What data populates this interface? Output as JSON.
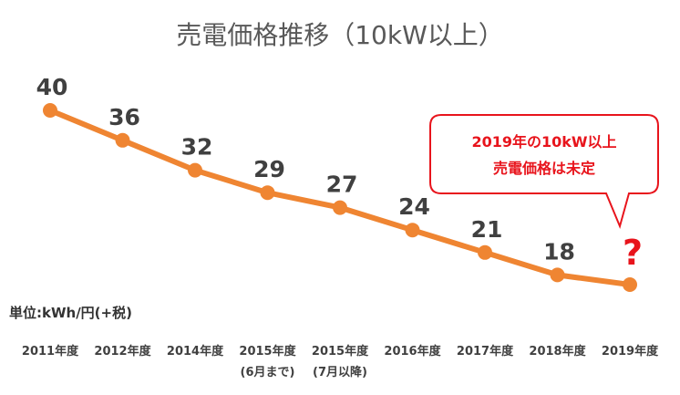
{
  "colors": {
    "line": "#ef8532",
    "accent": "#e8141c",
    "text": "#404040"
  },
  "chart_data": {
    "type": "line",
    "title": "売電価格推移（10kW以上）",
    "unit_label": "単位:kWh/円(+税)",
    "categories": [
      [
        "2011年度"
      ],
      [
        "2012年度"
      ],
      [
        "2014年度"
      ],
      [
        "2015年度",
        "(6月まで)"
      ],
      [
        "2015年度",
        "(7月以降)"
      ],
      [
        "2016年度"
      ],
      [
        "2017年度"
      ],
      [
        "2018年度"
      ],
      [
        "2019年度"
      ]
    ],
    "series": [
      {
        "values": [
          40,
          36,
          32,
          29,
          27,
          24,
          21,
          18,
          null
        ]
      }
    ],
    "unknown_marker": "?",
    "annotation": {
      "lines": [
        "2019年の10kW以上",
        "売電価格は未定"
      ]
    }
  }
}
